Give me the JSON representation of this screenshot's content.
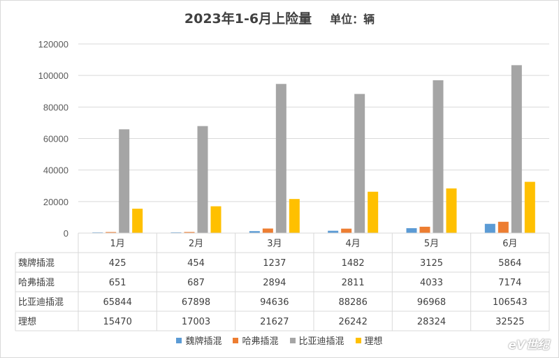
{
  "chart_data": {
    "type": "bar",
    "title": "2023年1-6月上险量",
    "unit_label": "单位：辆",
    "categories": [
      "1月",
      "2月",
      "3月",
      "4月",
      "5月",
      "6月"
    ],
    "ylim": [
      0,
      120000
    ],
    "yticks": [
      "0",
      "20000",
      "40000",
      "60000",
      "80000",
      "100000",
      "120000"
    ],
    "grid": true,
    "legend_position": "bottom",
    "series": [
      {
        "name": "魏牌插混",
        "color": "#5b9bd5",
        "values": [
          425,
          454,
          1237,
          1482,
          3125,
          5864
        ]
      },
      {
        "name": "哈弗插混",
        "color": "#ed7d31",
        "values": [
          651,
          687,
          2894,
          2811,
          4033,
          7174
        ]
      },
      {
        "name": "比亚迪插混",
        "color": "#a5a5a5",
        "values": [
          65844,
          67898,
          94636,
          88286,
          96968,
          106543
        ]
      },
      {
        "name": "理想",
        "color": "#ffc000",
        "values": [
          15470,
          17003,
          21627,
          26242,
          28324,
          32525
        ]
      }
    ]
  },
  "watermark": "eV世纪"
}
